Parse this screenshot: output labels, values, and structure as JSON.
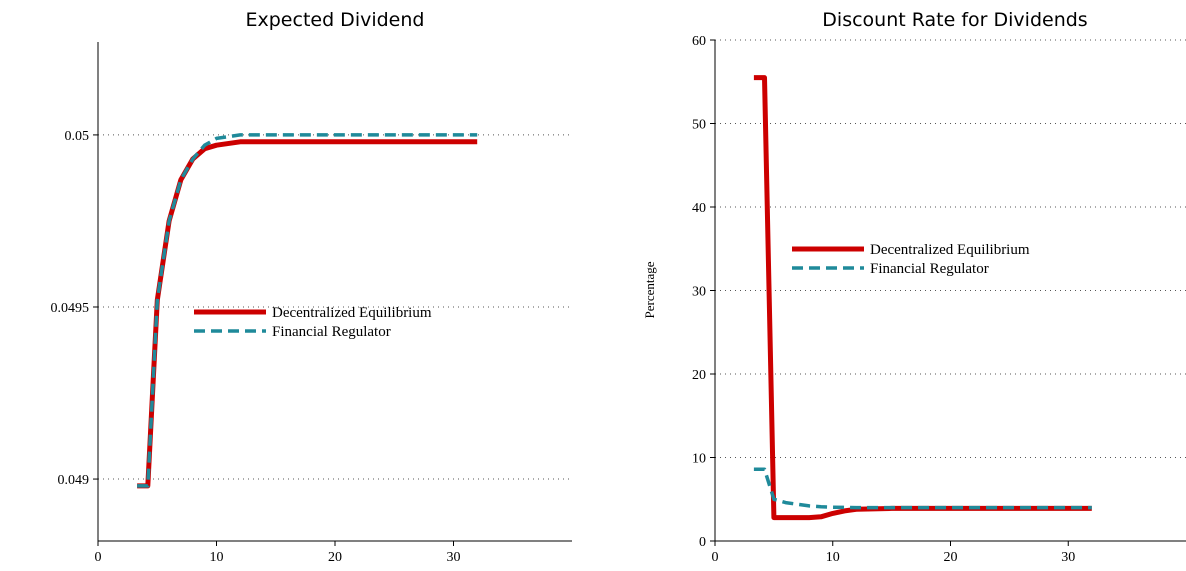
{
  "colors": {
    "decentralized": "#cc0000",
    "regulator": "#1f8a9a"
  },
  "chart_data": [
    {
      "type": "line",
      "title": "Expected Dividend",
      "ylabel": "",
      "xlim": [
        0,
        40
      ],
      "ylim": [
        0.04882,
        0.05027
      ],
      "xticks": [
        "0",
        "10",
        "20",
        "30"
      ],
      "yticks": [
        {
          "value": 0.049,
          "label": "0.049"
        },
        {
          "value": 0.0495,
          "label": "0.0495"
        },
        {
          "value": 0.05,
          "label": "0.05"
        }
      ],
      "grid": "horizontal dotted",
      "legend": "center-right",
      "series": [
        {
          "name": "Decentralized Equilibrium",
          "color": "#cc0000",
          "style": "solid",
          "x": [
            3.3,
            4.2,
            5,
            6,
            7,
            8,
            9,
            10,
            12,
            15,
            20,
            25,
            30,
            32
          ],
          "y": [
            0.04898,
            0.04898,
            0.04952,
            0.04975,
            0.04987,
            0.04993,
            0.04996,
            0.04997,
            0.04998,
            0.04998,
            0.04998,
            0.04998,
            0.04998,
            0.04998
          ]
        },
        {
          "name": "Financial Regulator",
          "color": "#1f8a9a",
          "style": "dashed",
          "x": [
            3.3,
            4.2,
            5,
            6,
            7,
            8,
            9,
            10,
            12,
            15,
            20,
            25,
            30,
            32
          ],
          "y": [
            0.04898,
            0.04898,
            0.04952,
            0.04975,
            0.04987,
            0.04993,
            0.04997,
            0.04999,
            0.05,
            0.05,
            0.05,
            0.05,
            0.05,
            0.05
          ]
        }
      ]
    },
    {
      "type": "line",
      "title": "Discount Rate for Dividends",
      "ylabel": "Percentage",
      "xlim": [
        0,
        40
      ],
      "ylim": [
        0,
        60
      ],
      "xticks": [
        "0",
        "10",
        "20",
        "30"
      ],
      "yticks": [
        {
          "value": 0,
          "label": "0"
        },
        {
          "value": 10,
          "label": "10"
        },
        {
          "value": 20,
          "label": "20"
        },
        {
          "value": 30,
          "label": "30"
        },
        {
          "value": 40,
          "label": "40"
        },
        {
          "value": 50,
          "label": "50"
        },
        {
          "value": 60,
          "label": "60"
        }
      ],
      "grid": "horizontal dotted",
      "legend": "center-right",
      "series": [
        {
          "name": "Decentralized Equilibrium",
          "color": "#cc0000",
          "style": "solid",
          "x": [
            3.3,
            4.2,
            5,
            6,
            7,
            8,
            9,
            10,
            11,
            12,
            15,
            20,
            25,
            30,
            32
          ],
          "y": [
            55.5,
            55.5,
            2.8,
            2.8,
            2.8,
            2.8,
            2.9,
            3.3,
            3.6,
            3.8,
            3.9,
            3.9,
            3.9,
            3.9,
            3.9
          ]
        },
        {
          "name": "Financial Regulator",
          "color": "#1f8a9a",
          "style": "dashed",
          "x": [
            3.3,
            4.2,
            5,
            6,
            7,
            8,
            9,
            10,
            12,
            15,
            20,
            25,
            30,
            32
          ],
          "y": [
            8.6,
            8.6,
            5.0,
            4.6,
            4.4,
            4.2,
            4.1,
            4.05,
            4.0,
            4.0,
            4.0,
            4.0,
            4.0,
            4.0
          ]
        }
      ]
    }
  ]
}
